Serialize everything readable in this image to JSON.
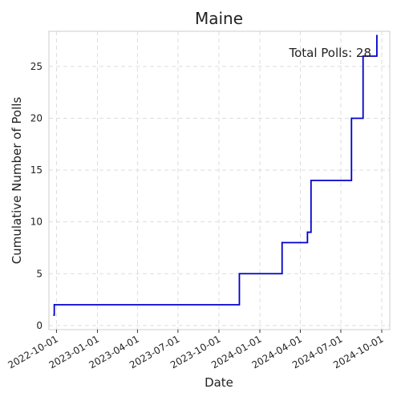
{
  "chart_data": {
    "type": "line",
    "title": "Maine",
    "xlabel": "Date",
    "ylabel": "Cumulative Number of Polls",
    "annotation": "Total Polls: 28",
    "grid": true,
    "line_color": "#0000cc",
    "line_style": "step",
    "xlim": [
      "2022-09-14",
      "2024-10-19"
    ],
    "ylim": [
      -0.4,
      28.4
    ],
    "x_ticks": [
      "2022-10-01",
      "2023-01-01",
      "2023-04-01",
      "2023-07-01",
      "2023-10-01",
      "2024-01-01",
      "2024-04-01",
      "2024-07-01",
      "2024-10-01"
    ],
    "y_ticks": [
      0,
      5,
      10,
      15,
      20,
      25
    ],
    "series": [
      {
        "x": [
          "2022-09-25",
          "2022-09-26",
          "2023-11-16",
          "2024-02-20",
          "2024-04-17",
          "2024-04-25",
          "2024-07-25",
          "2024-08-20",
          "2024-09-20"
        ],
        "y": [
          1,
          2,
          5,
          8,
          9,
          14,
          20,
          26,
          28
        ]
      }
    ]
  }
}
